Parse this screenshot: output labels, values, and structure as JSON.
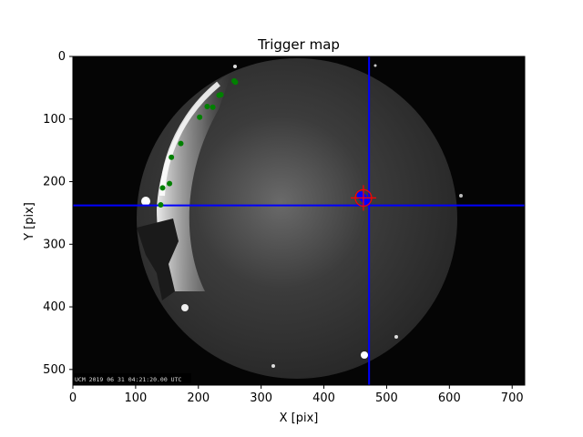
{
  "chart_data": {
    "type": "scatter",
    "title": "Trigger map",
    "xlabel": "X [pix]",
    "ylabel": "Y [pix]",
    "xlim": [
      0,
      720
    ],
    "ylim": [
      525,
      0
    ],
    "xticks": [
      0,
      100,
      200,
      300,
      400,
      500,
      600,
      700
    ],
    "yticks": [
      0,
      100,
      200,
      300,
      400,
      500
    ],
    "background": "all-sky fisheye camera frame (grayscale)",
    "timestamp_overlay": "UCM 2019 06 31 04:21:20.00 UTC",
    "crosshair": {
      "x": 472,
      "y": 238,
      "color": "#0000ff"
    },
    "series": [
      {
        "color": "#008000",
        "marker": "circle",
        "points": [
          {
            "x": 257,
            "y": 39
          },
          {
            "x": 259,
            "y": 41
          },
          {
            "x": 236,
            "y": 61
          },
          {
            "x": 233,
            "y": 62
          },
          {
            "x": 223,
            "y": 81
          },
          {
            "x": 214,
            "y": 80
          },
          {
            "x": 202,
            "y": 97
          },
          {
            "x": 172,
            "y": 139
          },
          {
            "x": 157,
            "y": 161
          },
          {
            "x": 154,
            "y": 203
          },
          {
            "x": 143,
            "y": 210
          },
          {
            "x": 140,
            "y": 237
          }
        ]
      },
      {
        "color": "#0000ff",
        "marker": "circle",
        "points": [
          {
            "x": 459,
            "y": 222
          },
          {
            "x": 463,
            "y": 226
          },
          {
            "x": 467,
            "y": 231
          }
        ]
      }
    ],
    "target_marker": {
      "x": 463,
      "y": 226,
      "color": "#ff0000",
      "marker": "crosshair-circle"
    }
  }
}
